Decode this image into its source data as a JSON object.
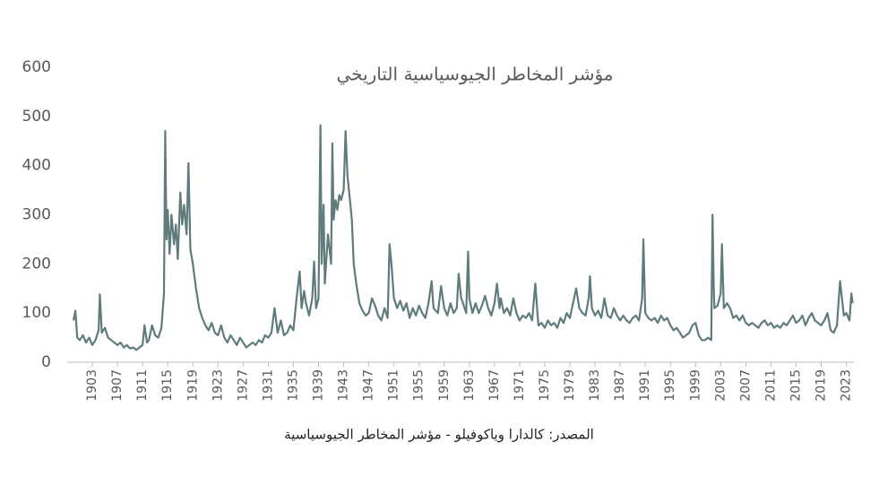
{
  "chart_data": {
    "type": "line",
    "title": "مؤشر المخاطر الجيوسياسية التاريخي",
    "source": "المصدر: كالدارا وياكوفيلو - مؤشر المخاطر الجيوسياسية",
    "color": "#5f7b7b",
    "grid": false,
    "xlim": [
      1899,
      2024.2
    ],
    "ylim": [
      0,
      600
    ],
    "yticks": [
      0,
      100,
      200,
      300,
      400,
      500,
      600
    ],
    "xticks": [
      1903,
      1907,
      1911,
      1915,
      1919,
      1923,
      1927,
      1931,
      1935,
      1939,
      1943,
      1947,
      1951,
      1955,
      1959,
      1963,
      1967,
      1971,
      1975,
      1979,
      1983,
      1987,
      1991,
      1995,
      1999,
      2003,
      2007,
      2011,
      2015,
      2019,
      2023
    ],
    "x": [
      1900,
      1900.3,
      1900.6,
      1901,
      1901.5,
      1902,
      1902.5,
      1903,
      1903.5,
      1904,
      1904.2,
      1904.5,
      1905,
      1905.5,
      1906,
      1906.5,
      1907,
      1907.5,
      1908,
      1908.5,
      1909,
      1909.5,
      1910,
      1910.5,
      1911,
      1911.3,
      1911.7,
      1912,
      1912.5,
      1913,
      1913.5,
      1914,
      1914.4,
      1914.6,
      1914.8,
      1915,
      1915.3,
      1915.6,
      1916,
      1916.3,
      1916.6,
      1917,
      1917.3,
      1917.6,
      1918,
      1918.3,
      1918.6,
      1919,
      1919.5,
      1920,
      1920.5,
      1921,
      1921.5,
      1922,
      1922.5,
      1923,
      1923.5,
      1924,
      1924.5,
      1925,
      1925.5,
      1926,
      1926.5,
      1927,
      1927.5,
      1928,
      1928.5,
      1929,
      1929.5,
      1930,
      1930.5,
      1931,
      1931.5,
      1932,
      1932.5,
      1933,
      1933.5,
      1934,
      1934.5,
      1935,
      1935.5,
      1936,
      1936.3,
      1936.7,
      1937,
      1937.5,
      1938,
      1938.3,
      1938.6,
      1939,
      1939.3,
      1939.5,
      1939.8,
      1940,
      1940.5,
      1941,
      1941.2,
      1941.4,
      1941.7,
      1942,
      1942.3,
      1942.6,
      1943,
      1943.3,
      1943.6,
      1944,
      1944.3,
      1944.6,
      1945,
      1945.5,
      1946,
      1946.5,
      1947,
      1947.5,
      1948,
      1948.5,
      1949,
      1949.5,
      1950,
      1950.3,
      1950.6,
      1951,
      1951.5,
      1952,
      1952.5,
      1953,
      1953.5,
      1954,
      1954.5,
      1955,
      1955.5,
      1956,
      1956.5,
      1957,
      1957.3,
      1958,
      1958.5,
      1959,
      1959.5,
      1960,
      1960.5,
      1961,
      1961.3,
      1961.7,
      1962,
      1962.5,
      1962.8,
      1963,
      1963.5,
      1964,
      1964.5,
      1965,
      1965.5,
      1966,
      1966.5,
      1967,
      1967.4,
      1967.8,
      1968,
      1968.5,
      1969,
      1969.5,
      1970,
      1970.5,
      1971,
      1971.5,
      1972,
      1972.5,
      1973,
      1973.5,
      1973.9,
      1974,
      1974.5,
      1975,
      1975.5,
      1976,
      1976.5,
      1977,
      1977.5,
      1978,
      1978.5,
      1979,
      1979.5,
      1980,
      1980.5,
      1981,
      1981.5,
      1982,
      1982.2,
      1982.5,
      1983,
      1983.5,
      1984,
      1984.5,
      1985,
      1985.5,
      1986,
      1986.5,
      1987,
      1987.5,
      1988,
      1988.5,
      1989,
      1989.5,
      1990,
      1990.5,
      1990.7,
      1991,
      1991.5,
      1992,
      1992.5,
      1993,
      1993.5,
      1994,
      1994.5,
      1995,
      1995.5,
      1996,
      1996.5,
      1997,
      1997.5,
      1998,
      1998.5,
      1999,
      1999.5,
      2000,
      2000.5,
      2001,
      2001.5,
      2001.7,
      2001.9,
      2002,
      2002.5,
      2003,
      2003.2,
      2003.5,
      2004,
      2004.5,
      2005,
      2005.5,
      2006,
      2006.5,
      2007,
      2007.5,
      2008,
      2008.5,
      2009,
      2009.5,
      2010,
      2010.5,
      2011,
      2011.5,
      2012,
      2012.5,
      2013,
      2013.5,
      2014,
      2014.5,
      2015,
      2015.5,
      2016,
      2016.5,
      2017,
      2017.5,
      2018,
      2018.5,
      2019,
      2019.5,
      2020,
      2020.5,
      2021,
      2021.5,
      2022,
      2022.3,
      2022.6,
      2023,
      2023.5,
      2023.8,
      2024
    ],
    "values": [
      85,
      105,
      50,
      45,
      55,
      40,
      50,
      35,
      45,
      65,
      138,
      60,
      70,
      50,
      45,
      40,
      35,
      40,
      30,
      35,
      28,
      30,
      25,
      30,
      35,
      75,
      40,
      45,
      75,
      55,
      50,
      70,
      140,
      470,
      250,
      310,
      220,
      300,
      240,
      280,
      210,
      345,
      280,
      320,
      260,
      405,
      230,
      200,
      150,
      110,
      90,
      75,
      65,
      80,
      60,
      55,
      75,
      50,
      40,
      55,
      45,
      35,
      50,
      40,
      30,
      35,
      40,
      35,
      45,
      40,
      55,
      50,
      60,
      110,
      60,
      85,
      55,
      60,
      75,
      65,
      130,
      185,
      110,
      145,
      120,
      95,
      130,
      205,
      110,
      130,
      482,
      200,
      320,
      160,
      260,
      200,
      445,
      290,
      330,
      310,
      340,
      330,
      350,
      470,
      380,
      330,
      290,
      200,
      160,
      120,
      105,
      95,
      100,
      130,
      115,
      95,
      85,
      110,
      90,
      240,
      200,
      130,
      110,
      125,
      105,
      120,
      90,
      110,
      95,
      115,
      100,
      90,
      120,
      165,
      110,
      100,
      155,
      110,
      95,
      120,
      100,
      110,
      180,
      130,
      120,
      100,
      225,
      130,
      100,
      120,
      100,
      115,
      135,
      110,
      95,
      120,
      160,
      110,
      130,
      100,
      110,
      95,
      130,
      100,
      85,
      95,
      90,
      100,
      85,
      160,
      90,
      75,
      80,
      70,
      85,
      75,
      80,
      70,
      90,
      80,
      100,
      90,
      120,
      150,
      110,
      100,
      95,
      130,
      175,
      110,
      95,
      105,
      90,
      130,
      95,
      90,
      110,
      95,
      85,
      95,
      85,
      80,
      90,
      95,
      85,
      130,
      250,
      100,
      90,
      85,
      90,
      80,
      95,
      85,
      90,
      75,
      65,
      70,
      60,
      50,
      55,
      60,
      75,
      80,
      55,
      45,
      45,
      50,
      45,
      300,
      150,
      110,
      115,
      140,
      240,
      110,
      120,
      110,
      90,
      95,
      85,
      95,
      80,
      75,
      80,
      75,
      70,
      80,
      85,
      75,
      80,
      70,
      75,
      70,
      80,
      75,
      85,
      95,
      80,
      85,
      95,
      75,
      90,
      100,
      85,
      80,
      75,
      85,
      100,
      65,
      60,
      75,
      165,
      130,
      95,
      100,
      85,
      140,
      120
    ]
  }
}
